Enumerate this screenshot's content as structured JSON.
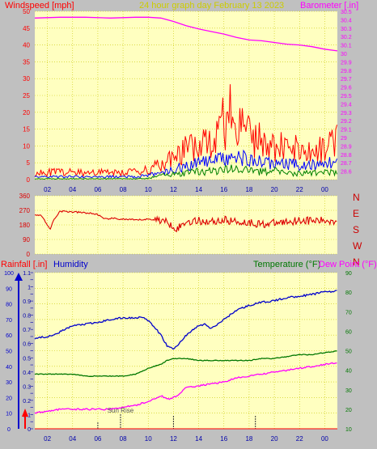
{
  "header": {
    "left": "Windspeed [mph]",
    "center": "24 hour graph day   February 13 2023",
    "right": "Barometer [.in]"
  },
  "colors": {
    "background": "#c0c0c0",
    "plot_bg": "#ffffc0",
    "grid": "#c8c800",
    "wind": "#ff0000",
    "wind_avg": "#0000ff",
    "wind_low": "#008000",
    "barometer": "#ff00ff",
    "direction": "#dd0000",
    "humidity": "#0000cc",
    "temperature": "#007700",
    "dewpoint": "#ff00ff",
    "rainfall": "#ff0000",
    "header_left": "#ff0000",
    "header_center": "#cccc00",
    "header_right": "#ff00ff"
  },
  "chart_data": [
    {
      "type": "line",
      "name": "wind-barometer",
      "x_unit": "hour",
      "x_range": [
        0,
        24
      ],
      "x_ticks": [
        "02",
        "04",
        "06",
        "08",
        "10",
        "12",
        "14",
        "16",
        "18",
        "20",
        "22",
        "00"
      ],
      "left_axis": {
        "label": "Windspeed [mph]",
        "ylim": [
          0,
          50
        ],
        "ticks": [
          "0",
          "5",
          "10",
          "15",
          "20",
          "25",
          "30",
          "35",
          "40",
          "45",
          "50"
        ]
      },
      "right_axis": {
        "label": "Barometer [.in]",
        "ylim": [
          28.5,
          30.5
        ],
        "ticks": [
          "28.6",
          "28.7",
          "28.8",
          "28.9",
          "29",
          "29.1",
          "29.2",
          "29.3",
          "29.4",
          "29.5",
          "29.6",
          "29.7",
          "29.8",
          "29.9",
          "30",
          "30.1",
          "30.2",
          "30.3",
          "30.4",
          "30.5"
        ]
      },
      "series": [
        {
          "name": "Barometer",
          "axis": "right",
          "x": [
            0,
            2,
            4,
            6,
            8,
            9,
            10,
            11,
            12,
            13,
            14,
            15,
            16,
            17,
            18,
            19,
            20,
            21,
            22,
            23,
            24
          ],
          "y": [
            30.42,
            30.43,
            30.43,
            30.42,
            30.43,
            30.43,
            30.42,
            30.38,
            30.33,
            30.29,
            30.26,
            30.23,
            30.19,
            30.16,
            30.15,
            30.13,
            30.11,
            30.1,
            30.08,
            30.05,
            30.03
          ]
        },
        {
          "name": "Wind gust",
          "axis": "left",
          "x": [
            0,
            2,
            4,
            6,
            8,
            9,
            10,
            11,
            12,
            13,
            14,
            15,
            15.5,
            16,
            17,
            18,
            19,
            20,
            21,
            22,
            23,
            24
          ],
          "y": [
            3,
            3,
            3,
            3,
            3,
            4,
            6,
            9,
            12,
            15,
            18,
            23,
            28,
            25,
            18,
            15,
            13,
            13,
            12,
            11,
            14,
            16
          ]
        },
        {
          "name": "Wind average",
          "axis": "left",
          "x": [
            0,
            2,
            4,
            6,
            8,
            9,
            10,
            11,
            12,
            13,
            14,
            15,
            16,
            17,
            18,
            19,
            20,
            21,
            22,
            23,
            24
          ],
          "y": [
            1,
            1,
            1,
            1,
            1,
            1.5,
            2.5,
            3.5,
            5,
            5.5,
            6.5,
            7,
            8,
            7,
            6,
            5.5,
            5.5,
            5,
            5,
            6,
            6
          ]
        },
        {
          "name": "Wind lull",
          "axis": "left",
          "x": [
            0,
            2,
            4,
            6,
            8,
            9,
            10,
            11,
            12,
            13,
            14,
            15,
            16,
            17,
            18,
            19,
            20,
            21,
            22,
            23,
            24
          ],
          "y": [
            0.3,
            0.3,
            0.3,
            0.3,
            0.3,
            0.5,
            1.5,
            2,
            2.5,
            3,
            3,
            3.5,
            4,
            3.5,
            3,
            3,
            2.5,
            2.5,
            2.5,
            3,
            3
          ]
        }
      ]
    },
    {
      "type": "line",
      "name": "wind-direction",
      "x_range": [
        0,
        24
      ],
      "ylim": [
        0,
        360
      ],
      "ticks": [
        "0",
        "90",
        "180",
        "270",
        "360"
      ],
      "compass": [
        "N",
        "W",
        "S",
        "E",
        "N"
      ],
      "series": [
        {
          "name": "Direction",
          "x": [
            0,
            0.5,
            1,
            1.2,
            1.5,
            2,
            3,
            4,
            5,
            5.5,
            6,
            7,
            8,
            9,
            10,
            10.5,
            11,
            11.3,
            12,
            13,
            14,
            15,
            16,
            17,
            18,
            19,
            20,
            21,
            22,
            23,
            24
          ],
          "y": [
            245,
            240,
            180,
            150,
            210,
            265,
            260,
            255,
            245,
            215,
            220,
            215,
            210,
            215,
            210,
            195,
            175,
            155,
            200,
            205,
            200,
            210,
            200,
            195,
            185,
            190,
            200,
            210,
            205,
            205,
            205
          ]
        }
      ]
    },
    {
      "type": "line",
      "name": "humidity-temperature",
      "x_range": [
        0,
        24
      ],
      "x_ticks": [
        "02",
        "04",
        "06",
        "08",
        "10",
        "12",
        "14",
        "16",
        "18",
        "20",
        "22",
        "00"
      ],
      "labels": {
        "rainfall": "Rainfall [.in]",
        "humidity": "Humidity",
        "temperature": "Temperature (°F)",
        "dewpoint": "Dew Point (°F)"
      },
      "left_axis_humidity": {
        "ylim": [
          0,
          100
        ],
        "ticks": [
          "0",
          "10",
          "20",
          "30",
          "40",
          "50",
          "60",
          "70",
          "80",
          "90",
          "100"
        ]
      },
      "left_axis_rain": {
        "ylim": [
          0,
          1.1
        ],
        "ticks": [
          "0",
          "0.05",
          "0.1",
          "0.15",
          "0.2",
          "0.25",
          "0.3",
          "0.35",
          "0.4",
          "0.45",
          "0.5",
          "0.55",
          "0.6",
          "0.65",
          "0.7",
          "0.75",
          "0.8",
          "0.85",
          "0.9",
          "0.95",
          "1",
          "1.05",
          "1.1"
        ]
      },
      "right_axis": {
        "ylim": [
          10,
          90
        ],
        "ticks": [
          "10",
          "20",
          "30",
          "40",
          "50",
          "60",
          "70",
          "80",
          "90"
        ]
      },
      "sunrise": {
        "label": "Sun Rise",
        "hour": 6.8
      },
      "markers": [
        5,
        11,
        17.5
      ],
      "series": [
        {
          "name": "Humidity",
          "axis": "humidity",
          "x": [
            0,
            1,
            2,
            3,
            4,
            5,
            6,
            7,
            8,
            8.5,
            9,
            9.5,
            10,
            10.5,
            11,
            11.5,
            12,
            12.5,
            13,
            13.5,
            14,
            15,
            16,
            17,
            18,
            19,
            20,
            21,
            22,
            23,
            24
          ],
          "y": [
            58,
            59,
            62,
            66,
            67,
            68,
            70,
            71,
            71,
            72,
            69,
            65,
            60,
            53,
            51,
            55,
            60,
            63,
            66,
            67,
            64,
            70,
            76,
            79,
            81,
            82,
            84,
            85,
            86,
            88,
            88
          ]
        },
        {
          "name": "Temperature",
          "axis": "right",
          "x": [
            0,
            1,
            2,
            3,
            4,
            5,
            6,
            7,
            8,
            9,
            10,
            10.5,
            11,
            12,
            13,
            14,
            15,
            16,
            17,
            18,
            19,
            20,
            21,
            22,
            23,
            24
          ],
          "y": [
            38,
            38,
            38,
            38,
            37,
            37,
            37,
            37,
            38,
            41,
            43,
            45,
            46,
            46,
            45,
            45,
            45,
            45,
            45,
            46,
            46,
            47,
            48,
            48,
            49,
            50
          ]
        },
        {
          "name": "Dew Point",
          "axis": "right",
          "x": [
            0,
            1,
            2,
            3,
            4,
            5,
            6,
            7,
            8,
            9,
            10,
            10.5,
            11,
            11.5,
            12,
            13,
            14,
            15,
            16,
            17,
            18,
            19,
            20,
            21,
            22,
            23,
            24
          ],
          "y": [
            18,
            19,
            20,
            20,
            20,
            20,
            20,
            21,
            22,
            24,
            27,
            25,
            26,
            28,
            31,
            32,
            33,
            34,
            36,
            37,
            38,
            39,
            40,
            41,
            42,
            43,
            44
          ]
        },
        {
          "name": "Rainfall",
          "axis": "rain",
          "x": [
            0,
            24
          ],
          "y": [
            0,
            0
          ]
        }
      ]
    }
  ]
}
